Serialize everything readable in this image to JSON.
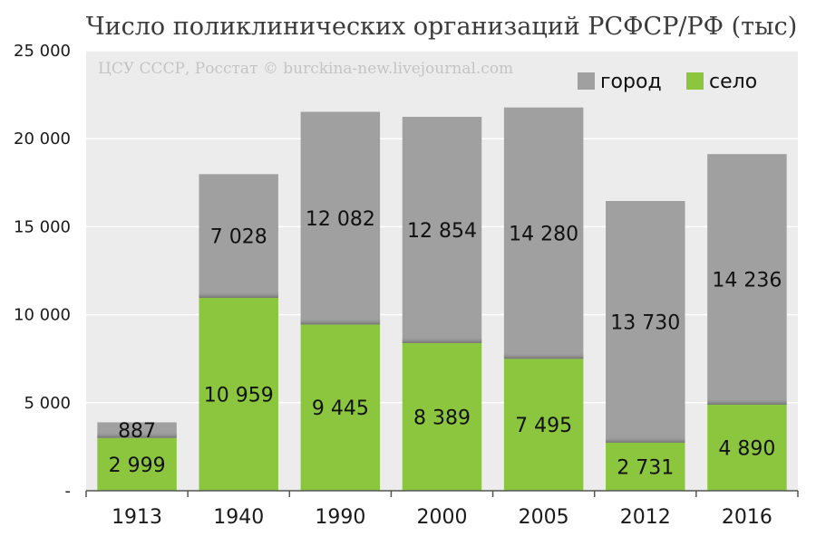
{
  "chart_data": {
    "type": "bar",
    "stacked": true,
    "title": "Число поликлинических организаций РСФСР/РФ (тыс)",
    "watermark": "ЦСУ СССР, Росстат © burckina-new.livejournal.com",
    "categories": [
      "1913",
      "1940",
      "1990",
      "2000",
      "2005",
      "2012",
      "2016"
    ],
    "series": [
      {
        "name": "село",
        "color": "#8cc63f",
        "values": [
          2999,
          10959,
          9445,
          8389,
          7495,
          2731,
          4890
        ],
        "labels": [
          "2 999",
          "10 959",
          "9 445",
          "8 389",
          "7 495",
          "2 731",
          "4 890"
        ]
      },
      {
        "name": "город",
        "color": "#a0a0a0",
        "values": [
          887,
          7028,
          12082,
          12854,
          14280,
          13730,
          14236
        ],
        "labels": [
          "887",
          "7 028",
          "12 082",
          "12 854",
          "14 280",
          "13 730",
          "14 236"
        ]
      }
    ],
    "legend_order": [
      "город",
      "село"
    ],
    "legend_position": "top-right",
    "ylim": [
      0,
      25000
    ],
    "yticks": [
      0,
      5000,
      10000,
      15000,
      20000,
      25000
    ],
    "ytick_labels": [
      "-",
      "5 000",
      "10 000",
      "15 000",
      "20 000",
      "25 000"
    ],
    "grid": true,
    "plot_background": "#ececec",
    "grid_color": "#ffffff"
  }
}
